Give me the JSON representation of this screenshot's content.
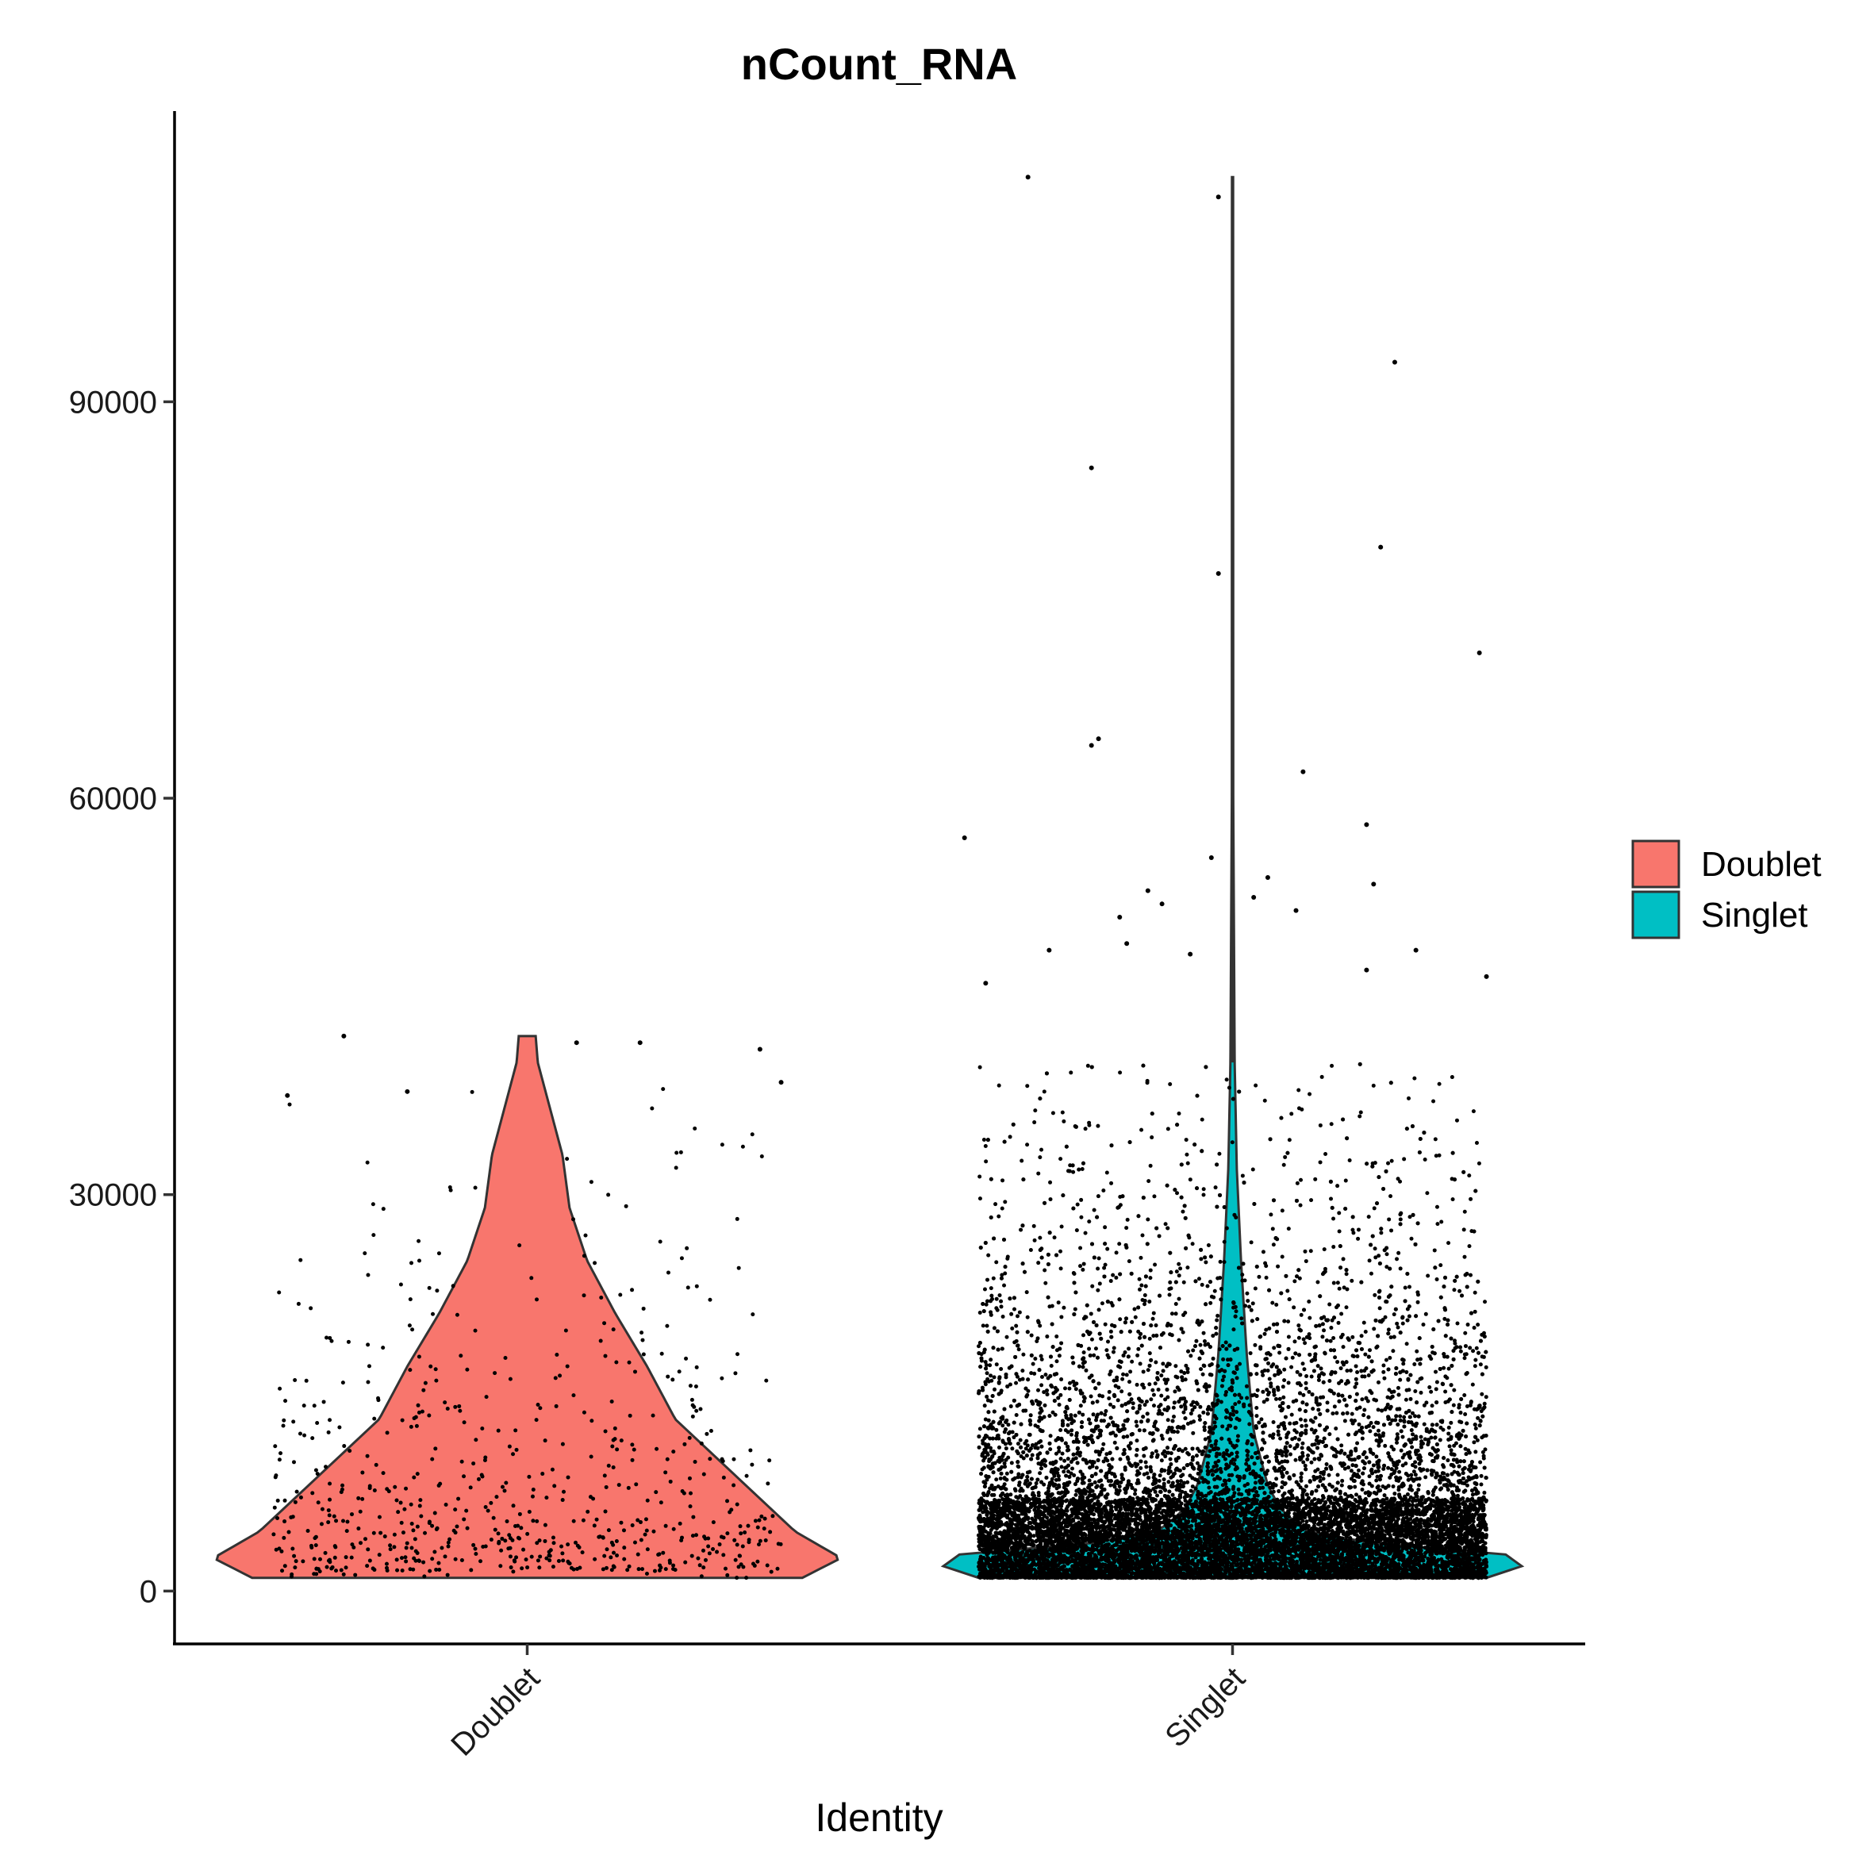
{
  "chart_data": {
    "type": "violin",
    "title": "nCount_RNA",
    "xlabel": "Identity",
    "ylabel": "",
    "categories": [
      "Doublet",
      "Singlet"
    ],
    "ylim": [
      -4000,
      112000
    ],
    "yticks": [
      0,
      30000,
      60000,
      90000
    ],
    "ytick_labels": [
      "0",
      "30000",
      "60000",
      "90000"
    ],
    "grid": false,
    "legend": {
      "position": "right",
      "entries": [
        {
          "label": "Doublet",
          "color": "#F8766D"
        },
        {
          "label": "Singlet",
          "color": "#00BFC4"
        }
      ]
    },
    "series": [
      {
        "name": "Doublet",
        "color": "#F8766D",
        "approx_points": 650,
        "min": 1000,
        "max": 42000,
        "density_profile": [
          {
            "y": 1000,
            "half_width": 0.39
          },
          {
            "y": 2500,
            "half_width": 0.445
          },
          {
            "y": 4500,
            "half_width": 0.38
          },
          {
            "y": 7000,
            "half_width": 0.33
          },
          {
            "y": 10000,
            "half_width": 0.27
          },
          {
            "y": 13000,
            "half_width": 0.21
          },
          {
            "y": 17000,
            "half_width": 0.17
          },
          {
            "y": 21000,
            "half_width": 0.125
          },
          {
            "y": 25000,
            "half_width": 0.085
          },
          {
            "y": 29000,
            "half_width": 0.06
          },
          {
            "y": 33000,
            "half_width": 0.05
          },
          {
            "y": 37000,
            "half_width": 0.03
          },
          {
            "y": 40000,
            "half_width": 0.015
          },
          {
            "y": 42000,
            "half_width": 0.012
          }
        ]
      },
      {
        "name": "Singlet",
        "color": "#00BFC4",
        "approx_points": 28000,
        "min": 1000,
        "max": 107000,
        "density_profile": [
          {
            "y": 1000,
            "half_width": 0.36
          },
          {
            "y": 2500,
            "half_width": 0.445
          },
          {
            "y": 4000,
            "half_width": 0.12
          },
          {
            "y": 6000,
            "half_width": 0.07
          },
          {
            "y": 8000,
            "half_width": 0.05
          },
          {
            "y": 12000,
            "half_width": 0.03
          },
          {
            "y": 18000,
            "half_width": 0.02
          },
          {
            "y": 25000,
            "half_width": 0.012
          },
          {
            "y": 32000,
            "half_width": 0.006
          },
          {
            "y": 40000,
            "half_width": 0.003
          },
          {
            "y": 60000,
            "half_width": 0.001
          },
          {
            "y": 107000,
            "half_width": 0.0008
          }
        ]
      }
    ],
    "outliers": {
      "Doublet": [
        {
          "dx": -0.26,
          "y": 42000
        },
        {
          "dx": 0.07,
          "y": 41500
        },
        {
          "dx": 0.16,
          "y": 41500
        },
        {
          "dx": 0.33,
          "y": 41000
        },
        {
          "dx": 0.36,
          "y": 38500
        },
        {
          "dx": -0.34,
          "y": 37500
        },
        {
          "dx": -0.17,
          "y": 37800
        }
      ],
      "Singlet": [
        {
          "dx": -0.29,
          "y": 107000
        },
        {
          "dx": -0.02,
          "y": 105500
        },
        {
          "dx": 0.23,
          "y": 93000
        },
        {
          "dx": -0.2,
          "y": 85000
        },
        {
          "dx": 0.21,
          "y": 79000
        },
        {
          "dx": -0.02,
          "y": 77000
        },
        {
          "dx": 0.35,
          "y": 71000
        },
        {
          "dx": -0.19,
          "y": 64500
        },
        {
          "dx": -0.2,
          "y": 64000
        },
        {
          "dx": 0.1,
          "y": 62000
        },
        {
          "dx": 0.19,
          "y": 58000
        },
        {
          "dx": -0.38,
          "y": 57000
        },
        {
          "dx": -0.03,
          "y": 55500
        },
        {
          "dx": 0.05,
          "y": 54000
        },
        {
          "dx": -0.12,
          "y": 53000
        },
        {
          "dx": 0.2,
          "y": 53500
        },
        {
          "dx": -0.1,
          "y": 52000
        },
        {
          "dx": -0.16,
          "y": 51000
        },
        {
          "dx": 0.03,
          "y": 52500
        },
        {
          "dx": 0.09,
          "y": 51500
        },
        {
          "dx": -0.15,
          "y": 49000
        },
        {
          "dx": -0.26,
          "y": 48500
        },
        {
          "dx": 0.26,
          "y": 48500
        },
        {
          "dx": -0.06,
          "y": 48200
        },
        {
          "dx": 0.19,
          "y": 47000
        },
        {
          "dx": -0.35,
          "y": 46000
        },
        {
          "dx": 0.36,
          "y": 46500
        }
      ]
    }
  }
}
